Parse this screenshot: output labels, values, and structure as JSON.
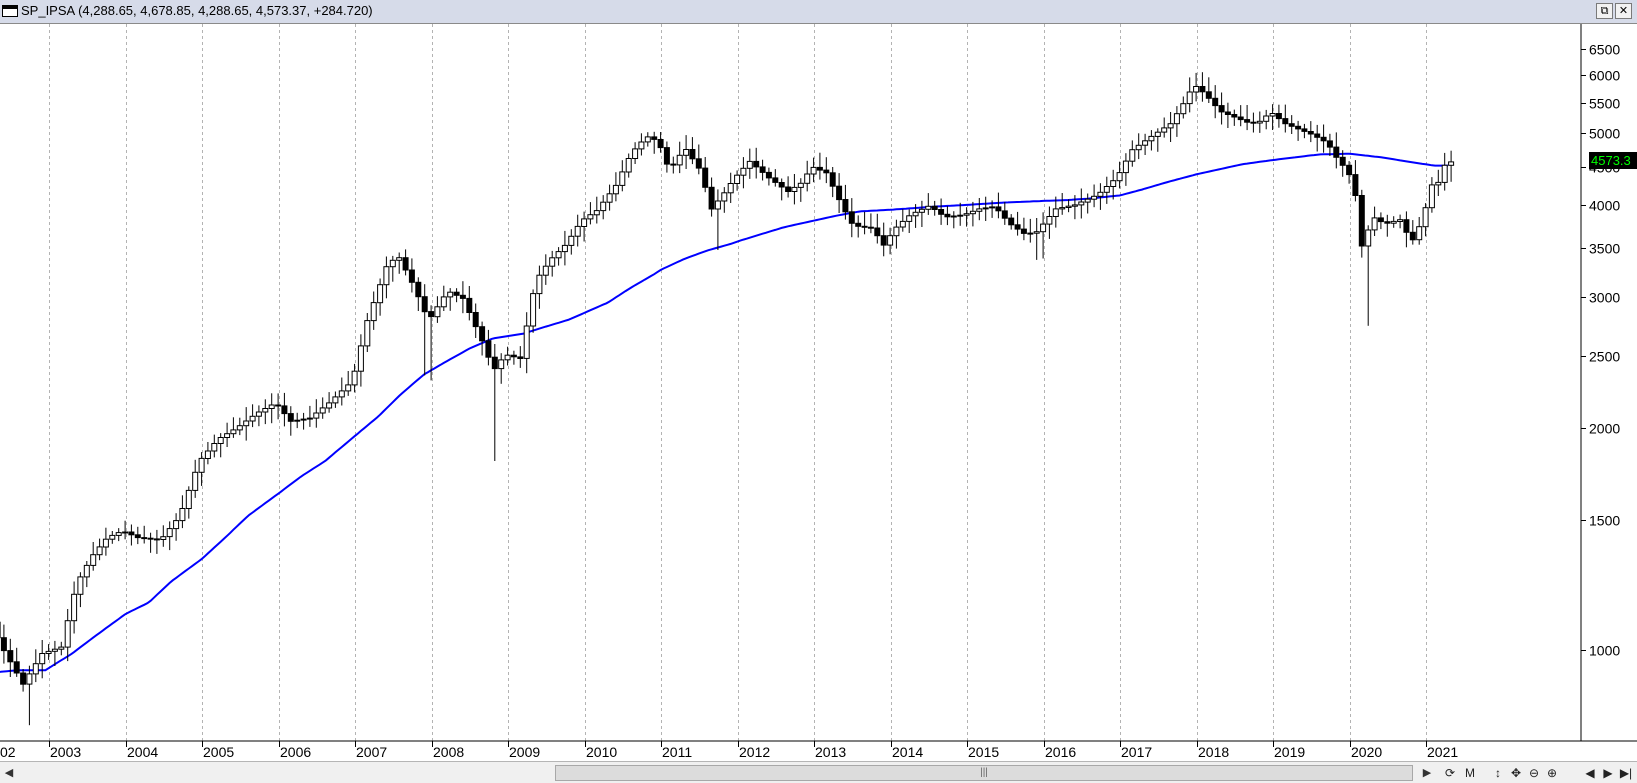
{
  "window": {
    "title": "SP_IPSA (4,288.65, 4,678.85, 4,288.65, 4,573.37, +284.720)",
    "restore_glyph": "⧉",
    "close_glyph": "✕"
  },
  "chart_data": {
    "type": "candlestick",
    "symbol": "SP_IPSA",
    "interval": "monthly",
    "y_scale": "log",
    "ylim": [
      780,
      7000
    ],
    "y_ticks": [
      1000,
      1500,
      2000,
      2500,
      3000,
      3500,
      4000,
      4500,
      5000,
      5500,
      6000,
      6500
    ],
    "x_tick_labels": [
      "02",
      "2003",
      "2004",
      "2005",
      "2006",
      "2007",
      "2008",
      "2009",
      "2010",
      "2011",
      "2012",
      "2013",
      "2014",
      "2015",
      "2016",
      "2017",
      "2018",
      "2019",
      "2020",
      "2021"
    ],
    "x_range": [
      2002.2,
      2021.8
    ],
    "last_price_label": "4573.3",
    "grid": {
      "vertical": true,
      "horizontal": false
    },
    "close_anchors": [
      [
        2002.2,
        1145
      ],
      [
        2002.4,
        1020
      ],
      [
        2002.7,
        900
      ],
      [
        2002.95,
        990
      ],
      [
        2003.2,
        1010
      ],
      [
        2003.4,
        1230
      ],
      [
        2003.6,
        1340
      ],
      [
        2003.8,
        1420
      ],
      [
        2004.0,
        1450
      ],
      [
        2004.2,
        1420
      ],
      [
        2004.5,
        1410
      ],
      [
        2004.75,
        1520
      ],
      [
        2005.0,
        1800
      ],
      [
        2005.25,
        1930
      ],
      [
        2005.5,
        2000
      ],
      [
        2005.75,
        2090
      ],
      [
        2006.0,
        2160
      ],
      [
        2006.2,
        2040
      ],
      [
        2006.45,
        2060
      ],
      [
        2006.7,
        2160
      ],
      [
        2007.0,
        2310
      ],
      [
        2007.2,
        2790
      ],
      [
        2007.45,
        3300
      ],
      [
        2007.6,
        3420
      ],
      [
        2007.8,
        3120
      ],
      [
        2008.0,
        2790
      ],
      [
        2008.25,
        3060
      ],
      [
        2008.45,
        2990
      ],
      [
        2008.7,
        2620
      ],
      [
        2008.85,
        2390
      ],
      [
        2009.0,
        2510
      ],
      [
        2009.2,
        2480
      ],
      [
        2009.4,
        3160
      ],
      [
        2009.6,
        3380
      ],
      [
        2009.8,
        3540
      ],
      [
        2010.0,
        3810
      ],
      [
        2010.2,
        3930
      ],
      [
        2010.45,
        4250
      ],
      [
        2010.65,
        4700
      ],
      [
        2010.85,
        4950
      ],
      [
        2011.0,
        4880
      ],
      [
        2011.15,
        4450
      ],
      [
        2011.35,
        4780
      ],
      [
        2011.55,
        4460
      ],
      [
        2011.7,
        3950
      ],
      [
        2011.85,
        4130
      ],
      [
        2012.0,
        4350
      ],
      [
        2012.2,
        4580
      ],
      [
        2012.45,
        4350
      ],
      [
        2012.7,
        4170
      ],
      [
        2012.9,
        4300
      ],
      [
        2013.0,
        4510
      ],
      [
        2013.2,
        4420
      ],
      [
        2013.4,
        4000
      ],
      [
        2013.55,
        3750
      ],
      [
        2013.8,
        3720
      ],
      [
        2013.95,
        3530
      ],
      [
        2014.1,
        3720
      ],
      [
        2014.3,
        3880
      ],
      [
        2014.55,
        3990
      ],
      [
        2014.75,
        3850
      ],
      [
        2015.0,
        3880
      ],
      [
        2015.2,
        3950
      ],
      [
        2015.4,
        3980
      ],
      [
        2015.6,
        3770
      ],
      [
        2015.8,
        3650
      ],
      [
        2015.95,
        3680
      ],
      [
        2016.2,
        3950
      ],
      [
        2016.45,
        4000
      ],
      [
        2016.75,
        4130
      ],
      [
        2017.0,
        4360
      ],
      [
        2017.2,
        4750
      ],
      [
        2017.45,
        4950
      ],
      [
        2017.7,
        5150
      ],
      [
        2017.9,
        5550
      ],
      [
        2018.0,
        5820
      ],
      [
        2018.15,
        5650
      ],
      [
        2018.35,
        5350
      ],
      [
        2018.55,
        5250
      ],
      [
        2018.75,
        5150
      ],
      [
        2018.9,
        5200
      ],
      [
        2019.0,
        5350
      ],
      [
        2019.2,
        5150
      ],
      [
        2019.4,
        5050
      ],
      [
        2019.55,
        4980
      ],
      [
        2019.75,
        4850
      ],
      [
        2019.9,
        4580
      ],
      [
        2020.0,
        4470
      ],
      [
        2020.1,
        4250
      ],
      [
        2020.2,
        3520
      ],
      [
        2020.35,
        3850
      ],
      [
        2020.5,
        3770
      ],
      [
        2020.7,
        3820
      ],
      [
        2020.85,
        3560
      ],
      [
        2021.0,
        3830
      ],
      [
        2021.1,
        4250
      ],
      [
        2021.2,
        4290
      ],
      [
        2021.3,
        4573
      ]
    ],
    "ma_anchors": [
      [
        2002.2,
        932
      ],
      [
        2002.6,
        940
      ],
      [
        2002.95,
        940
      ],
      [
        2003.3,
        990
      ],
      [
        2003.6,
        1045
      ],
      [
        2004.0,
        1120
      ],
      [
        2004.3,
        1160
      ],
      [
        2004.6,
        1240
      ],
      [
        2005.0,
        1330
      ],
      [
        2005.3,
        1420
      ],
      [
        2005.6,
        1520
      ],
      [
        2006.0,
        1630
      ],
      [
        2006.3,
        1720
      ],
      [
        2006.6,
        1800
      ],
      [
        2007.0,
        1950
      ],
      [
        2007.3,
        2070
      ],
      [
        2007.6,
        2220
      ],
      [
        2007.9,
        2360
      ],
      [
        2008.2,
        2460
      ],
      [
        2008.5,
        2560
      ],
      [
        2008.8,
        2640
      ],
      [
        2009.0,
        2660
      ],
      [
        2009.2,
        2680
      ],
      [
        2009.5,
        2740
      ],
      [
        2009.8,
        2800
      ],
      [
        2010.0,
        2860
      ],
      [
        2010.3,
        2950
      ],
      [
        2010.6,
        3090
      ],
      [
        2010.9,
        3220
      ],
      [
        2011.0,
        3270
      ],
      [
        2011.3,
        3380
      ],
      [
        2011.6,
        3470
      ],
      [
        2011.9,
        3540
      ],
      [
        2012.0,
        3570
      ],
      [
        2012.3,
        3650
      ],
      [
        2012.6,
        3730
      ],
      [
        2012.9,
        3790
      ],
      [
        2013.0,
        3810
      ],
      [
        2013.3,
        3870
      ],
      [
        2013.6,
        3920
      ],
      [
        2014.0,
        3940
      ],
      [
        2014.3,
        3960
      ],
      [
        2014.6,
        3980
      ],
      [
        2015.0,
        4000
      ],
      [
        2015.5,
        4030
      ],
      [
        2016.0,
        4050
      ],
      [
        2016.3,
        4060
      ],
      [
        2016.6,
        4080
      ],
      [
        2017.0,
        4120
      ],
      [
        2017.3,
        4200
      ],
      [
        2017.6,
        4290
      ],
      [
        2018.0,
        4400
      ],
      [
        2018.3,
        4470
      ],
      [
        2018.6,
        4540
      ],
      [
        2019.0,
        4600
      ],
      [
        2019.3,
        4640
      ],
      [
        2019.6,
        4680
      ],
      [
        2020.0,
        4690
      ],
      [
        2020.4,
        4640
      ],
      [
        2020.8,
        4570
      ],
      [
        2021.1,
        4520
      ],
      [
        2021.3,
        4520
      ]
    ],
    "colors": {
      "ma": "#0000ff",
      "up_body": "#ffffff",
      "down_body": "#000000",
      "wick": "#000000",
      "grid": "#b3b3b3"
    }
  },
  "scrollbar": {
    "left_arrow": "◀",
    "thumb_grip": "|||",
    "right_arrow": "▶"
  },
  "toolbar": {
    "refresh": "⟳",
    "mode": "M",
    "updown": "↕",
    "move": "✥",
    "zoom_out": "⊖",
    "zoom_in": "⊕",
    "prev": "◀",
    "next": "▶",
    "end": "▶|"
  }
}
